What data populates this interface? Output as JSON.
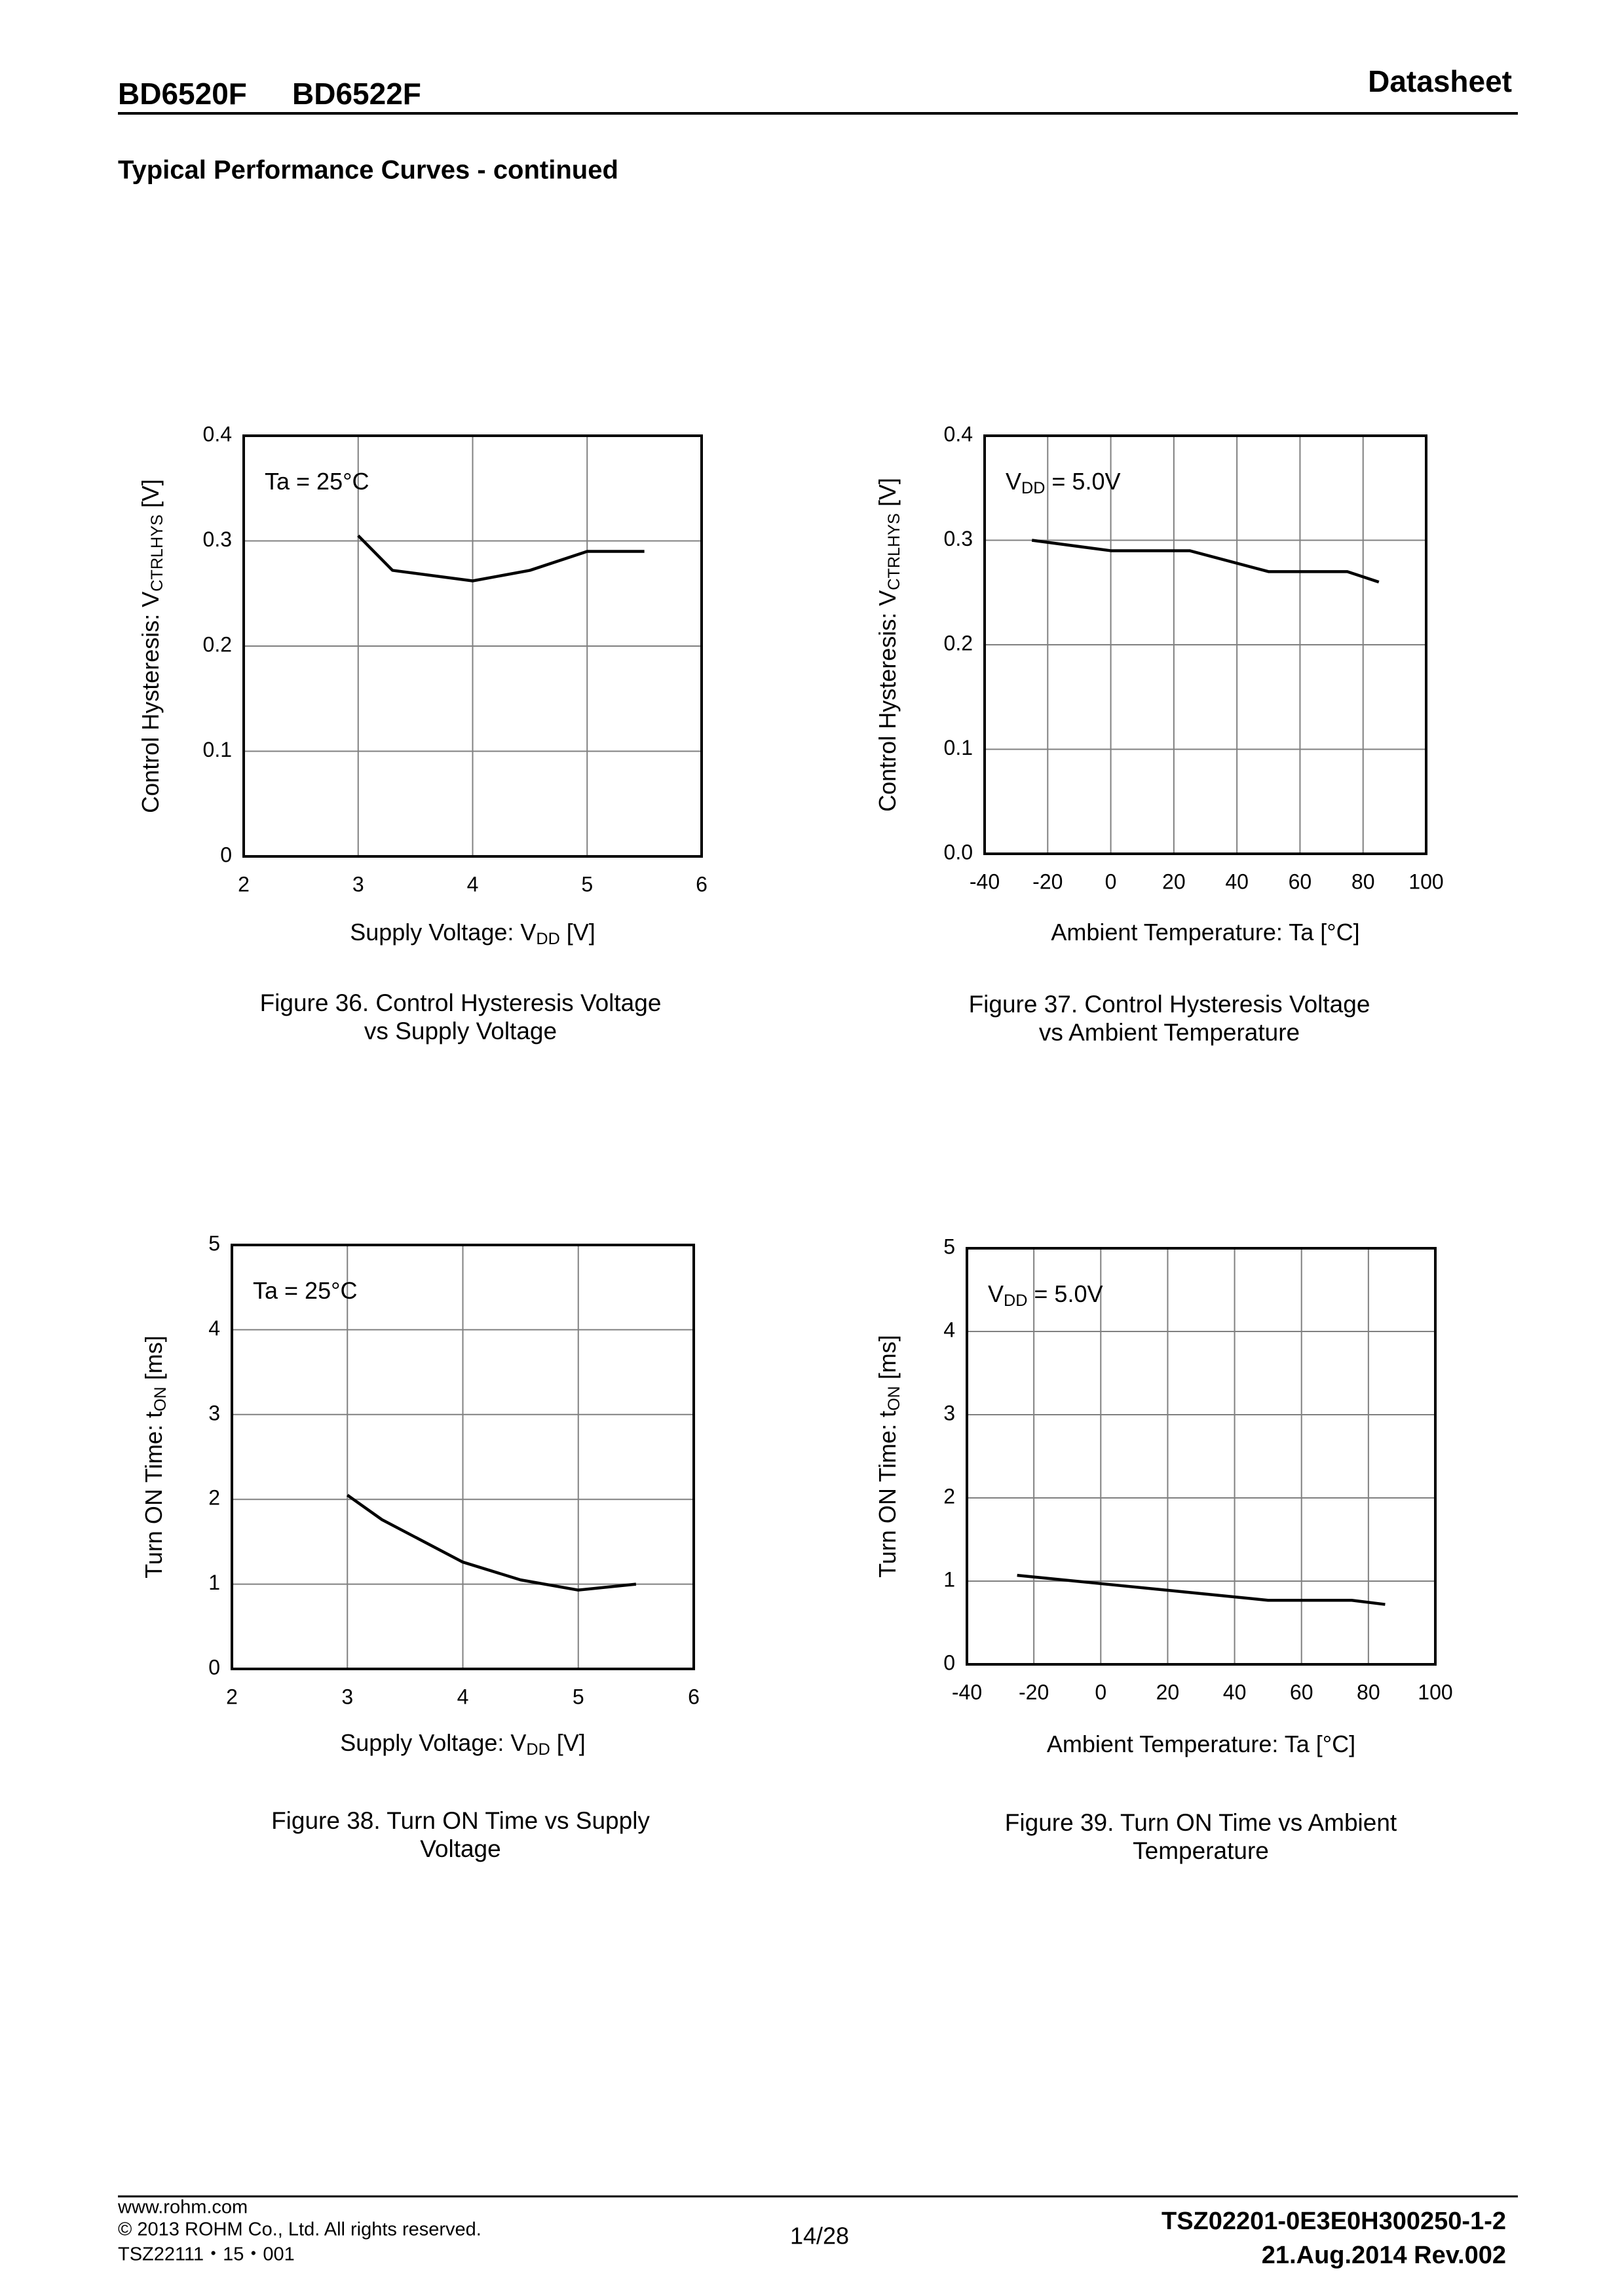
{
  "header": {
    "part_numbers": [
      "BD6520F",
      "BD6522F"
    ],
    "doc_type": "Datasheet",
    "section": "Typical Performance Curves - continued"
  },
  "chart_data": [
    {
      "type": "line",
      "annotation": [
        "Ta = 25°C"
      ],
      "xlabel": [
        "Supply Voltage: V",
        "DD",
        " [V]"
      ],
      "ylabel": [
        "Control Hysteresis: V",
        "CTRLHYS",
        " [V]"
      ],
      "caption": [
        "Figure 36. Control Hysteresis Voltage",
        "vs Supply Voltage"
      ],
      "x": [
        3,
        3.3,
        4,
        4.5,
        5,
        5.5
      ],
      "values": [
        0.305,
        0.272,
        0.262,
        0.272,
        0.29,
        0.29
      ],
      "color": "#000000",
      "xlim": [
        2,
        6
      ],
      "ylim": [
        0,
        0.4
      ],
      "xticks": [
        2,
        3,
        4,
        5,
        6
      ],
      "yticks": [
        0,
        0.1,
        0.2,
        0.3,
        0.4
      ],
      "grid": true
    },
    {
      "type": "line",
      "annotation": [
        "V",
        "DD",
        " = 5.0V"
      ],
      "xlabel": [
        "Ambient Temperature: Ta [°C]"
      ],
      "ylabel": [
        "Control Hysteresis: V",
        "CTRLHYS",
        " [V]"
      ],
      "caption": [
        "Figure 37. Control Hysteresis Voltage",
        "vs Ambient Temperature"
      ],
      "x": [
        -25,
        0,
        25,
        50,
        75,
        85
      ],
      "values": [
        0.3,
        0.29,
        0.29,
        0.27,
        0.27,
        0.26
      ],
      "color": "#000000",
      "xlim": [
        -40,
        100
      ],
      "ylim": [
        0,
        0.4
      ],
      "xticks": [
        -40,
        -20,
        0,
        20,
        40,
        60,
        80,
        100
      ],
      "yticks": [
        {
          "value": 0,
          "label": "0.0"
        },
        0.1,
        0.2,
        0.3,
        0.4
      ],
      "grid": true
    },
    {
      "type": "line",
      "annotation": [
        "Ta = 25°C"
      ],
      "xlabel": [
        "Supply Voltage: V",
        "DD",
        " [V]"
      ],
      "ylabel": [
        "Turn ON Time: t",
        "ON",
        " [ms]"
      ],
      "caption": [
        "Figure 38. Turn ON Time vs Supply",
        "Voltage"
      ],
      "x": [
        3,
        3.3,
        4,
        4.5,
        5,
        5.5
      ],
      "values": [
        2.05,
        1.76,
        1.26,
        1.05,
        0.93,
        1.0
      ],
      "color": "#000000",
      "xlim": [
        2,
        6
      ],
      "ylim": [
        0,
        5
      ],
      "xticks": [
        2,
        3,
        4,
        5,
        6
      ],
      "yticks": [
        0,
        1,
        2,
        3,
        4,
        5
      ],
      "grid": true
    },
    {
      "type": "line",
      "annotation": [
        "V",
        "DD",
        " = 5.0V"
      ],
      "xlabel": [
        "Ambient Temperature: Ta [°C]"
      ],
      "ylabel": [
        "Turn ON Time: t",
        "ON",
        " [ms]"
      ],
      "caption": [
        "Figure 39. Turn ON Time vs Ambient",
        "Temperature"
      ],
      "x": [
        -25,
        0,
        25,
        50,
        75,
        85
      ],
      "values": [
        1.07,
        0.97,
        0.87,
        0.77,
        0.77,
        0.72
      ],
      "color": "#000000",
      "xlim": [
        -40,
        100
      ],
      "ylim": [
        0,
        5
      ],
      "xticks": [
        -40,
        -20,
        0,
        20,
        40,
        60,
        80,
        100
      ],
      "yticks": [
        0,
        1,
        2,
        3,
        4,
        5
      ],
      "grid": true
    }
  ],
  "footer": {
    "website": "www.rohm.com",
    "copyright": "© 2013 ROHM Co., Ltd. All rights reserved.",
    "doc_code": "TSZ22111・15・001",
    "page": "14/28",
    "doc_number": "TSZ02201-0E3E0H300250-1-2",
    "revision": "21.Aug.2014 Rev.002"
  }
}
